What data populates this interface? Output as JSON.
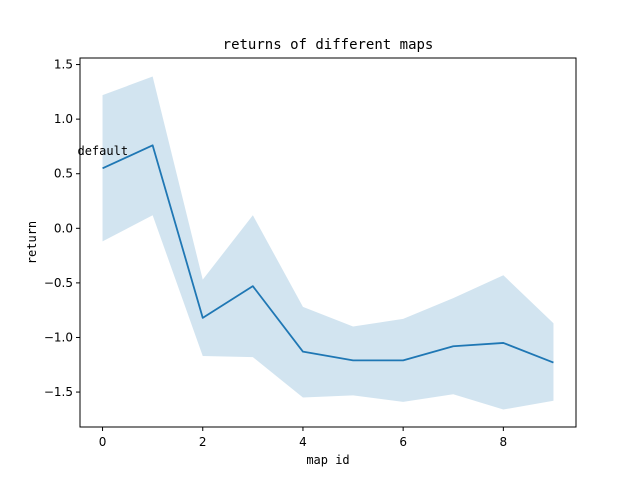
{
  "chart_data": {
    "type": "line",
    "title": "returns of different maps",
    "xlabel": "map id",
    "ylabel": "return",
    "xlim": [
      -0.45,
      9.45
    ],
    "ylim": [
      -1.82,
      1.56
    ],
    "xticks": [
      0,
      2,
      4,
      6,
      8
    ],
    "yticks": [
      -1.5,
      -1.0,
      -0.5,
      0.0,
      0.5,
      1.0,
      1.5
    ],
    "xtick_labels": [
      "0",
      "2",
      "4",
      "6",
      "8"
    ],
    "ytick_labels": [
      "−1.5",
      "−1.0",
      "−0.5",
      "0.0",
      "0.5",
      "1.0",
      "1.5"
    ],
    "grid": false,
    "series": [
      {
        "x": [
          0,
          1,
          2,
          3,
          4,
          5,
          6,
          7,
          8,
          9
        ],
        "values": [
          0.55,
          0.76,
          -0.82,
          -0.53,
          -1.13,
          -1.21,
          -1.21,
          -1.08,
          -1.05,
          -1.23
        ],
        "upper": [
          1.22,
          1.39,
          -0.47,
          0.12,
          -0.72,
          -0.9,
          -0.83,
          -0.64,
          -0.43,
          -0.87
        ],
        "lower": [
          -0.12,
          0.12,
          -1.17,
          -1.18,
          -1.55,
          -1.53,
          -1.59,
          -1.52,
          -1.66,
          -1.58
        ]
      }
    ],
    "annotations": [
      {
        "text": "default",
        "x": -0.5,
        "y": 0.71
      }
    ],
    "colors": {
      "line": "#1f77b4",
      "band": "#1f77b4",
      "axes": "#000000"
    }
  }
}
